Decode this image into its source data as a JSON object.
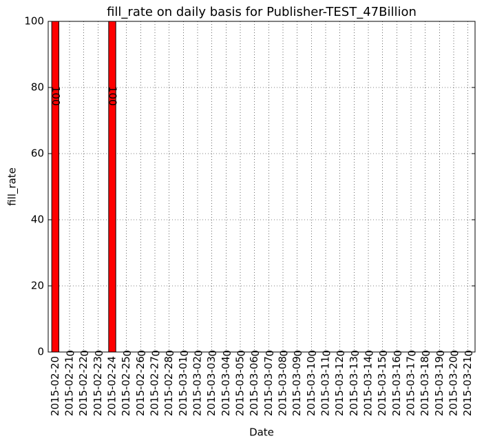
{
  "chart_data": {
    "type": "bar",
    "title": "fill_rate on daily basis for Publisher-TEST_47Billion",
    "x_label": "Date",
    "y_label": "fill_rate",
    "categories": [
      "2015-02-20",
      "2015-02-21",
      "2015-02-22",
      "2015-02-23",
      "2015-02-24",
      "2015-02-25",
      "2015-02-26",
      "2015-02-27",
      "2015-02-28",
      "2015-03-01",
      "2015-03-02",
      "2015-03-03",
      "2015-03-04",
      "2015-03-05",
      "2015-03-06",
      "2015-03-07",
      "2015-03-08",
      "2015-03-09",
      "2015-03-10",
      "2015-03-11",
      "2015-03-12",
      "2015-03-13",
      "2015-03-14",
      "2015-03-15",
      "2015-03-16",
      "2015-03-17",
      "2015-03-18",
      "2015-03-19",
      "2015-03-20",
      "2015-03-21"
    ],
    "values": [
      100,
      0,
      0,
      0,
      100,
      0,
      0,
      0,
      0,
      0,
      0,
      0,
      0,
      0,
      0,
      0,
      0,
      0,
      0,
      0,
      0,
      0,
      0,
      0,
      0,
      0,
      0,
      0,
      0,
      0
    ],
    "color": "#ff0000",
    "ylim": [
      0,
      100
    ],
    "yticks": [
      0,
      20,
      40,
      60,
      80,
      100
    ],
    "grid": true
  }
}
